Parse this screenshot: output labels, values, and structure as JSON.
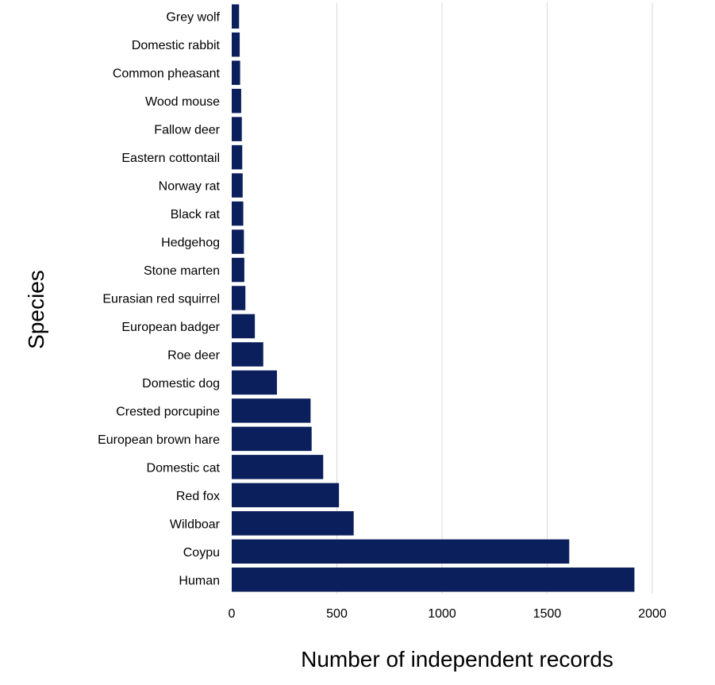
{
  "chart_data": {
    "type": "bar",
    "orientation": "horizontal",
    "title": "",
    "xlabel": "Number of independent records",
    "ylabel": "Species",
    "xlim": [
      0,
      2000
    ],
    "xticks": [
      0,
      500,
      1000,
      1500,
      2000
    ],
    "grid": "vertical",
    "bar_color": "#0b1f5c",
    "categories": [
      "Grey wolf",
      "Domestic rabbit",
      "Common pheasant",
      "Wood mouse",
      "Fallow deer",
      "Eastern cottontail",
      "Norway rat",
      "Black rat",
      "Hedgehog",
      "Stone marten",
      "Eurasian red squirrel",
      "European badger",
      "Roe deer",
      "Domestic dog",
      "Crested porcupine",
      "European brown hare",
      "Domestic cat",
      "Red fox",
      "Wildboar",
      "Coypu",
      "Human"
    ],
    "values": [
      35,
      38,
      40,
      45,
      48,
      50,
      52,
      55,
      58,
      60,
      65,
      110,
      150,
      215,
      375,
      380,
      435,
      510,
      580,
      1605,
      1915
    ]
  }
}
